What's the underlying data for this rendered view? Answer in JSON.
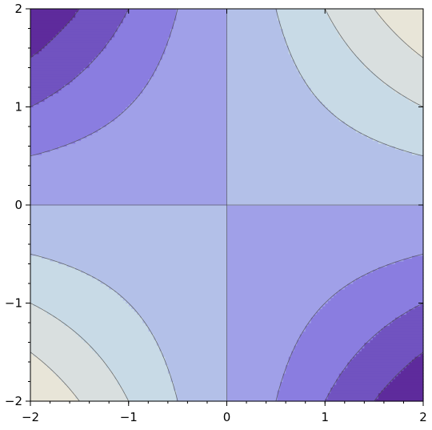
{
  "chart_data": {
    "type": "contour",
    "function": "z = x * y",
    "xlim": [
      -2,
      2
    ],
    "ylim": [
      -2,
      2
    ],
    "contour_levels": [
      -3,
      -2,
      -1,
      0,
      1,
      2,
      3
    ],
    "band_colors": [
      "#5e2b9c",
      "#7153c0",
      "#8a7de0",
      "#a0a0e8",
      "#b3c0e8",
      "#c8dae6",
      "#d9dfdf",
      "#e8e5d8"
    ],
    "line_color": "#4a4a4a",
    "x_ticks": [
      {
        "value": -2,
        "label": "-2"
      },
      {
        "value": -1,
        "label": "-1"
      },
      {
        "value": 0,
        "label": "0"
      },
      {
        "value": 1,
        "label": "1"
      },
      {
        "value": 2,
        "label": "2"
      }
    ],
    "y_ticks": [
      {
        "value": -2,
        "label": "-2"
      },
      {
        "value": -1,
        "label": "-1"
      },
      {
        "value": 0,
        "label": "0"
      },
      {
        "value": 1,
        "label": "1"
      },
      {
        "value": 2,
        "label": "2"
      }
    ],
    "title": "",
    "xlabel": "",
    "ylabel": "",
    "grid": false
  }
}
